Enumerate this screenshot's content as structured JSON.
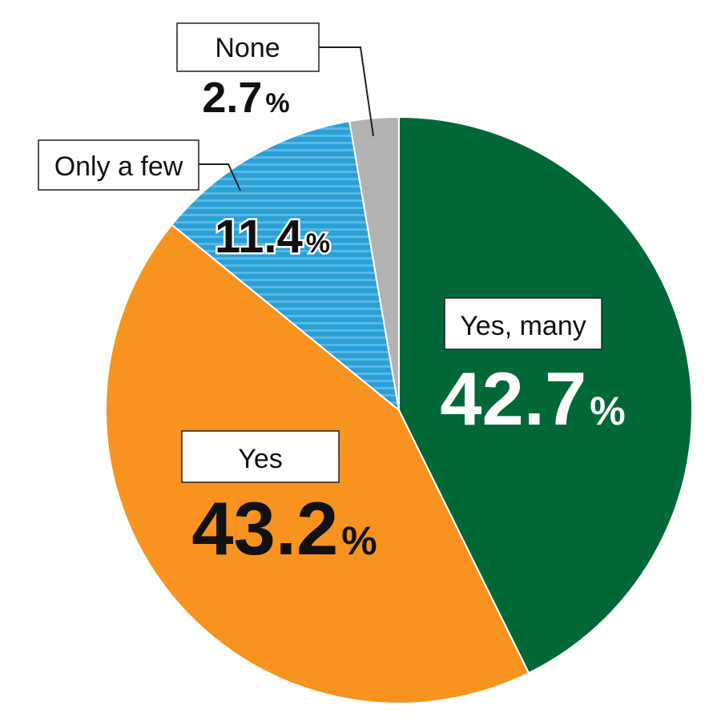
{
  "chart_data": {
    "type": "pie",
    "title": "",
    "unit": "%",
    "slices": [
      {
        "label": "Yes, many",
        "value": 42.7,
        "value_text": "42.7",
        "color": "#006837",
        "pattern": "none"
      },
      {
        "label": "Yes",
        "value": 43.2,
        "value_text": "43.2",
        "color": "#f7931e",
        "pattern": "none"
      },
      {
        "label": "Only a few",
        "value": 11.4,
        "value_text": "11.4",
        "color": "#29a0d6",
        "pattern": "horizontal-stripes"
      },
      {
        "label": "None",
        "value": 2.7,
        "value_text": "2.7",
        "color": "#b3b3b3",
        "pattern": "none"
      }
    ],
    "start_angle": "12 o'clock",
    "direction": "clockwise",
    "legend": "none"
  }
}
